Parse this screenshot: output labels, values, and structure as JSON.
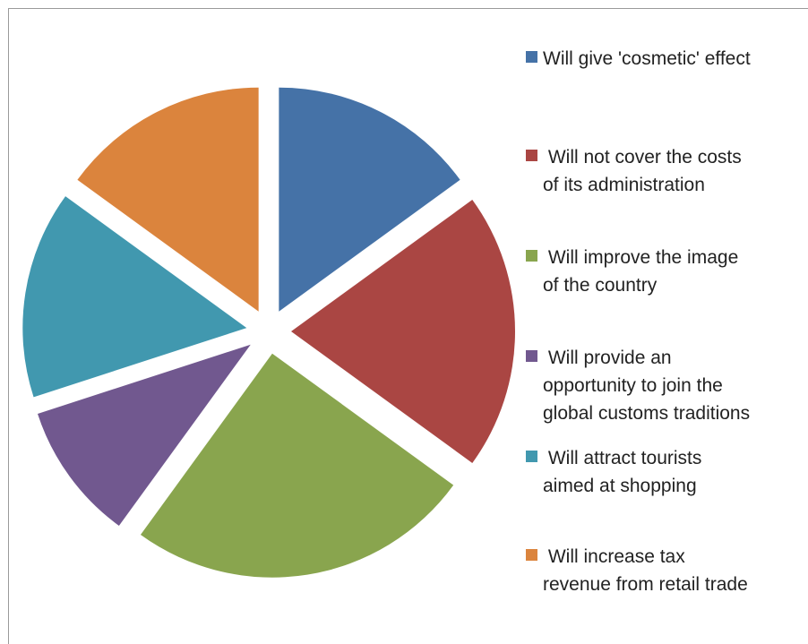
{
  "chart_data": {
    "type": "pie",
    "title": "",
    "legend_position": "right",
    "exploded": true,
    "slices": [
      {
        "label": "Will give 'cosmetic' effect",
        "value": 15,
        "color": "#4572a7"
      },
      {
        "label": " Will not cover the costs\nof its administration",
        "value": 20,
        "color": "#aa4643"
      },
      {
        "label": " Will improve the image\nof the country",
        "value": 25,
        "color": "#89a54e"
      },
      {
        "label": " Will provide an\nopportunity to join the\nglobal customs traditions",
        "value": 10,
        "color": "#71588f"
      },
      {
        "label": " Will attract tourists\naimed at shopping",
        "value": 15,
        "color": "#4198af"
      },
      {
        "label": " Will increase tax\nrevenue from retail trade",
        "value": 15,
        "color": "#db843d"
      }
    ]
  }
}
